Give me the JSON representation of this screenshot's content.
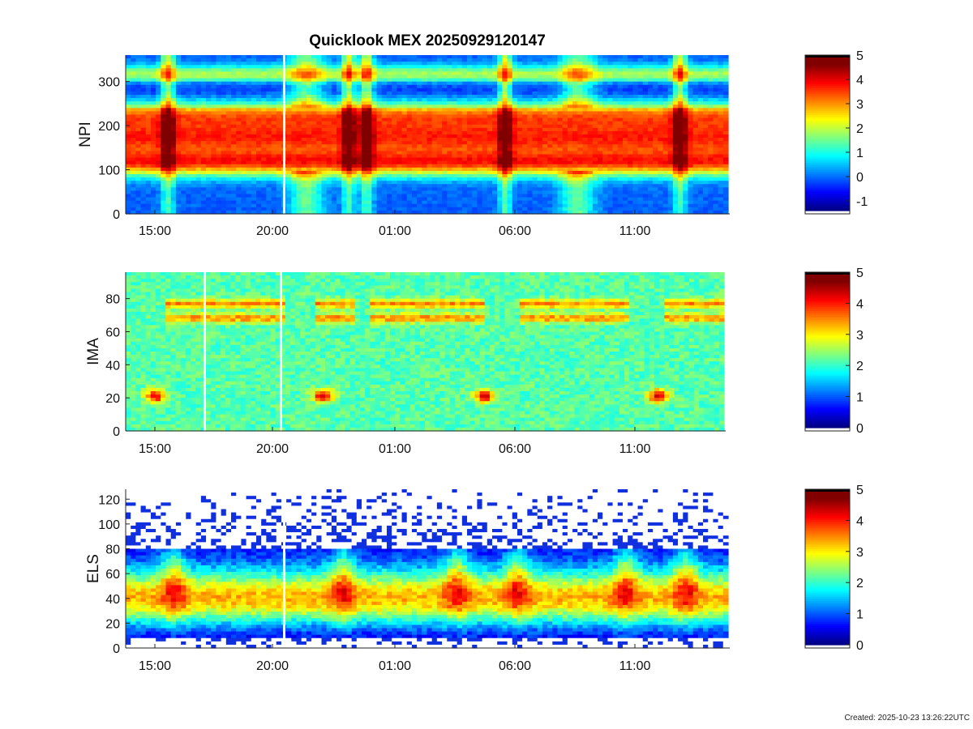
{
  "title": "Quicklook MEX 20250929120147",
  "created": "Created: 2025-10-23 13:26:22UTC",
  "chart_data": [
    {
      "type": "heatmap",
      "instrument": "NPI",
      "ylabel": "NPI",
      "ylim": [
        0,
        360
      ],
      "yticks": [
        0,
        100,
        200,
        300
      ],
      "xticks": [
        "15:00",
        "20:00",
        "01:00",
        "06:00",
        "11:00"
      ],
      "grid": false,
      "colorbar": {
        "ticks": [
          -1,
          0,
          1,
          2,
          3,
          4,
          5
        ],
        "range": [
          -1.4,
          5
        ]
      }
    },
    {
      "type": "heatmap",
      "instrument": "IMA",
      "ylabel": "IMA",
      "ylim": [
        0,
        96
      ],
      "yticks": [
        0,
        20,
        40,
        60,
        80
      ],
      "xticks": [
        "15:00",
        "20:00",
        "01:00",
        "06:00",
        "11:00"
      ],
      "grid": false,
      "colorbar": {
        "ticks": [
          0,
          1,
          2,
          3,
          4,
          5
        ],
        "range": [
          0,
          5
        ]
      }
    },
    {
      "type": "heatmap",
      "instrument": "ELS",
      "ylabel": "ELS",
      "ylim": [
        0,
        128
      ],
      "yticks": [
        0,
        20,
        40,
        60,
        80,
        100,
        120
      ],
      "xticks": [
        "15:00",
        "20:00",
        "01:00",
        "06:00",
        "11:00"
      ],
      "grid": false,
      "colorbar": {
        "ticks": [
          0,
          1,
          2,
          3,
          4,
          5
        ],
        "range": [
          0,
          5
        ]
      }
    }
  ]
}
